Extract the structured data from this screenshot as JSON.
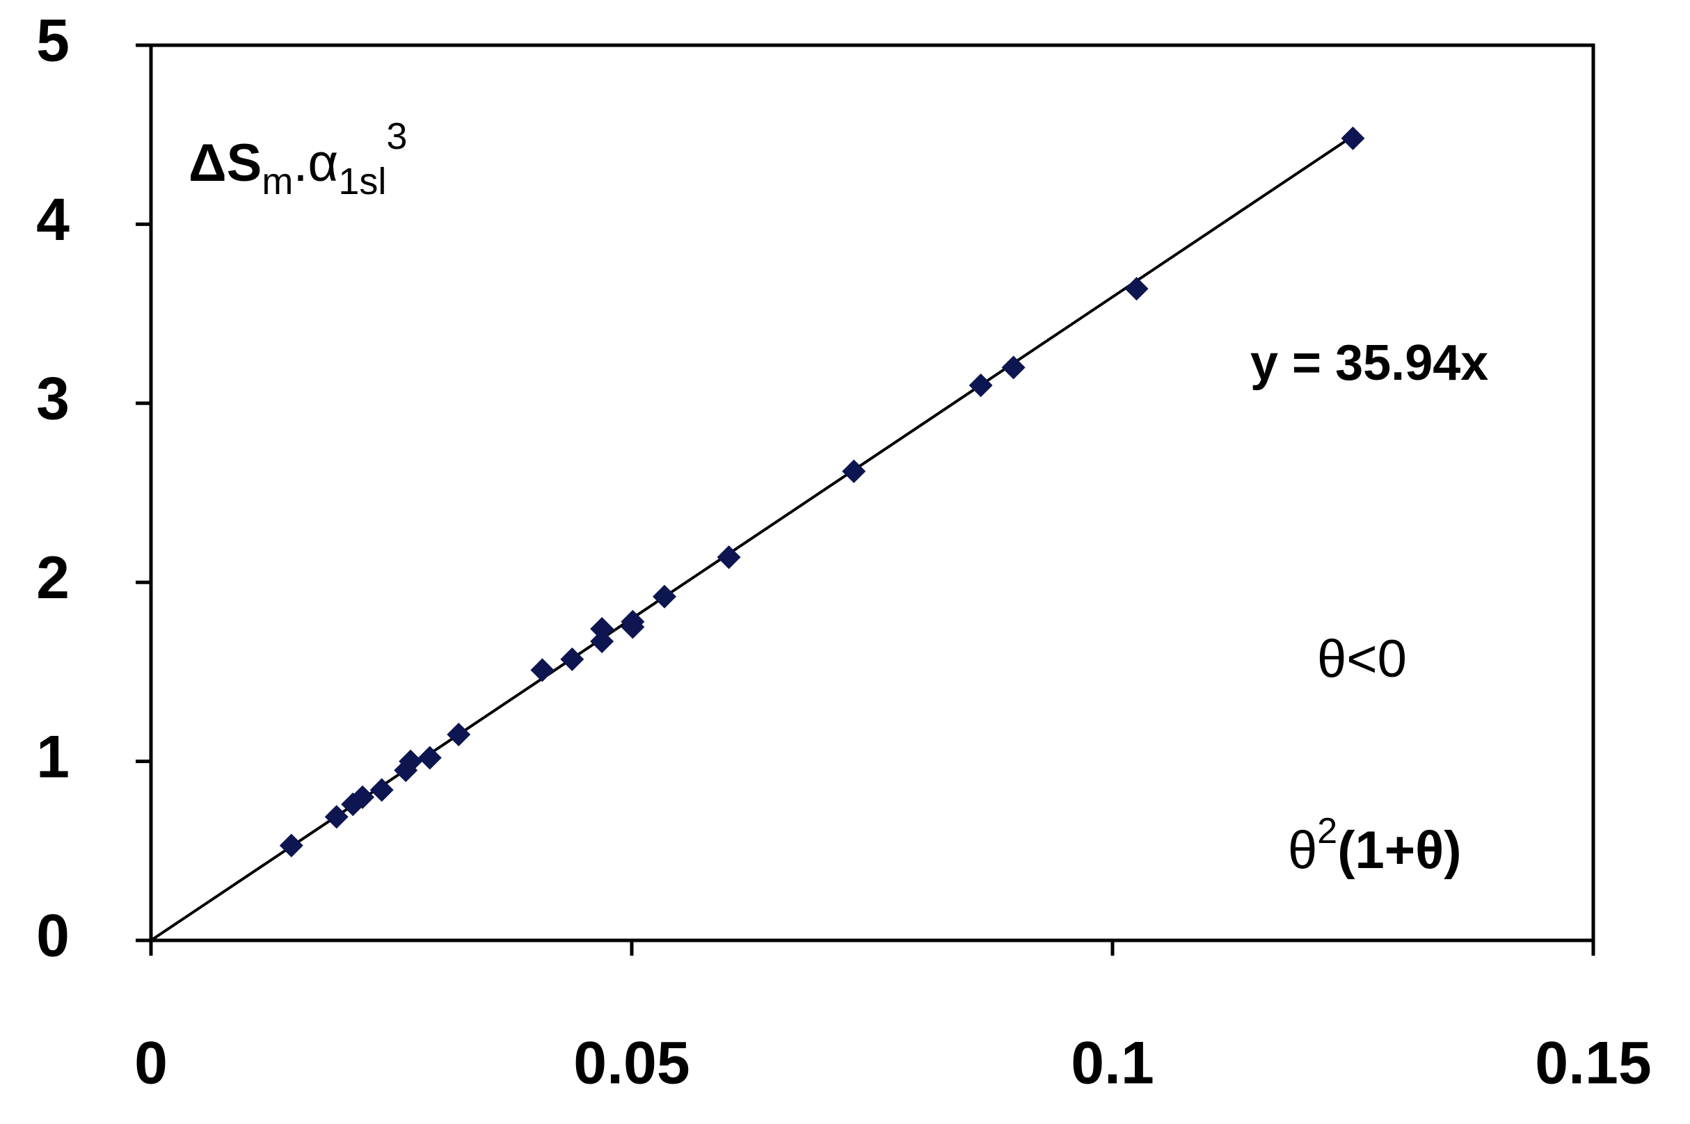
{
  "chart_data": {
    "type": "scatter",
    "y_label": [
      "ΔS",
      "m",
      ".α",
      "1sl",
      "3"
    ],
    "x_label": [
      "θ",
      "2",
      "(1+θ)"
    ],
    "annotations": [
      "θ<0"
    ],
    "trendline": {
      "slope": 35.94,
      "label": "y = 35.94x"
    },
    "series": [
      {
        "color": "#0d1650",
        "x": [
          0.0146,
          0.0193,
          0.021,
          0.022,
          0.024,
          0.0265,
          0.027,
          0.029,
          0.032,
          0.0407,
          0.0438,
          0.0469,
          0.0469,
          0.0501,
          0.0501,
          0.0534,
          0.0601,
          0.0731,
          0.0863,
          0.0897,
          0.1025,
          0.125
        ],
        "values": [
          0.53,
          0.69,
          0.76,
          0.8,
          0.84,
          0.95,
          1.0,
          1.02,
          1.15,
          1.51,
          1.57,
          1.67,
          1.74,
          1.75,
          1.78,
          1.92,
          2.14,
          2.62,
          3.1,
          3.2,
          3.64,
          4.48
        ]
      }
    ],
    "xlim": [
      0,
      0.15
    ],
    "ylim": [
      0,
      5
    ],
    "xticks": [
      0,
      0.05,
      0.1,
      0.15
    ],
    "yticks": [
      0,
      1,
      2,
      3,
      4,
      5
    ]
  }
}
